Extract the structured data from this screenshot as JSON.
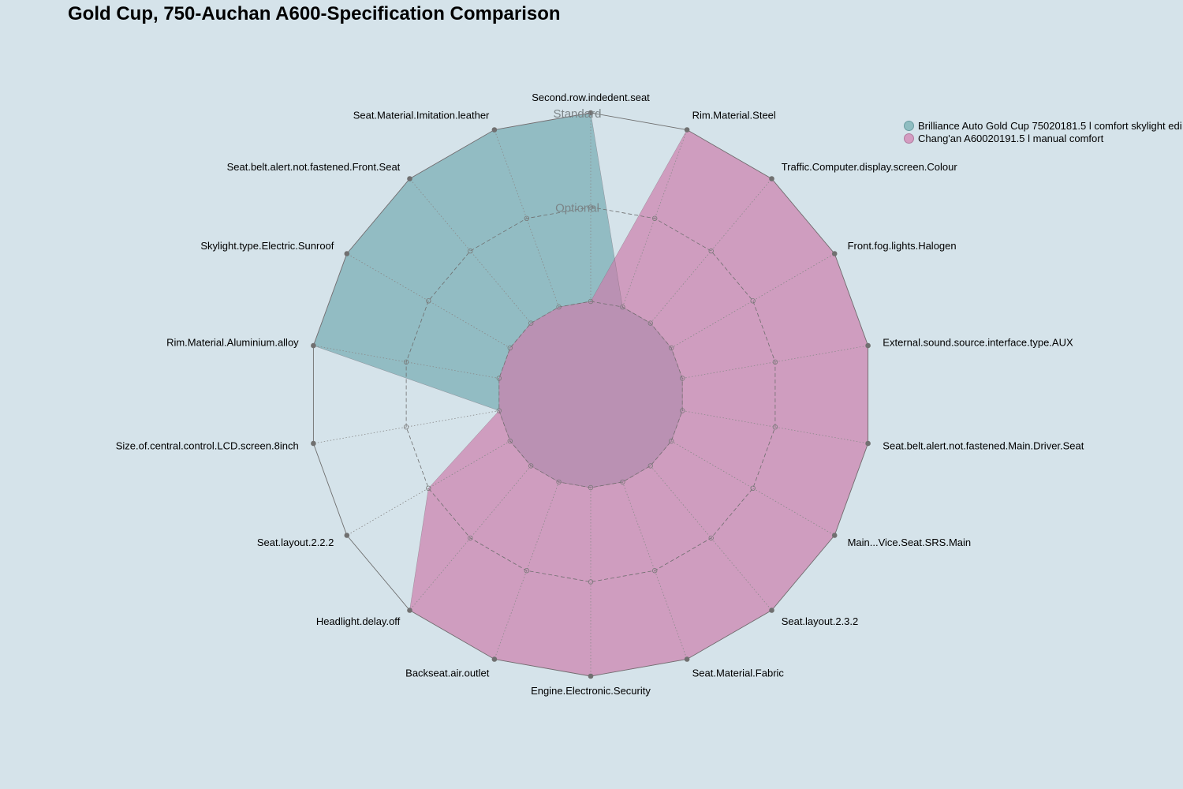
{
  "chart_data": {
    "type": "radar",
    "title": "Gold Cup, 750-Auchan A600-Specification Comparison",
    "axes": [
      "Second.row.indedent.seat",
      "Rim.Material.Steel",
      "Traffic.Computer.display.screen.Colour",
      "Front.fog.lights.Halogen",
      "External.sound.source.interface.type.AUX",
      "Seat.belt.alert.not.fastened.Main.Driver.Seat",
      "Main...Vice.Seat.SRS.Main",
      "Seat.layout.2.3.2",
      "Seat.Material.Fabric",
      "Engine.Electronic.Security",
      "Backseat.air.outlet",
      "Headlight.delay.off",
      "Seat.layout.2.2.2",
      "Size.of.central.control.LCD.screen.8inch",
      "Rim.Material.Aluminium.alloy",
      "Skylight.type.Electric.Sunroof",
      "Seat.belt.alert.not.fastened.Front.Seat",
      "Seat.Material.Imitation.leather"
    ],
    "levels": [
      "",
      "Optional",
      "Standard"
    ],
    "series": [
      {
        "name": "Brilliance Auto Gold Cup 75020181.5 l comfort skylight edi",
        "color": "#6fa7ad",
        "values": [
          2,
          0,
          0,
          0,
          0,
          0,
          0,
          0,
          0,
          0,
          0,
          0,
          0,
          0,
          2,
          2,
          2,
          2
        ]
      },
      {
        "name": "Chang'an A60020191.5 l manual comfort",
        "color": "#cc7fad",
        "values": [
          0,
          2,
          2,
          2,
          2,
          2,
          2,
          2,
          2,
          2,
          2,
          2,
          1,
          0,
          0,
          0,
          0,
          0
        ]
      }
    ],
    "range": [
      0,
      2
    ],
    "legend_position": "top-right"
  }
}
